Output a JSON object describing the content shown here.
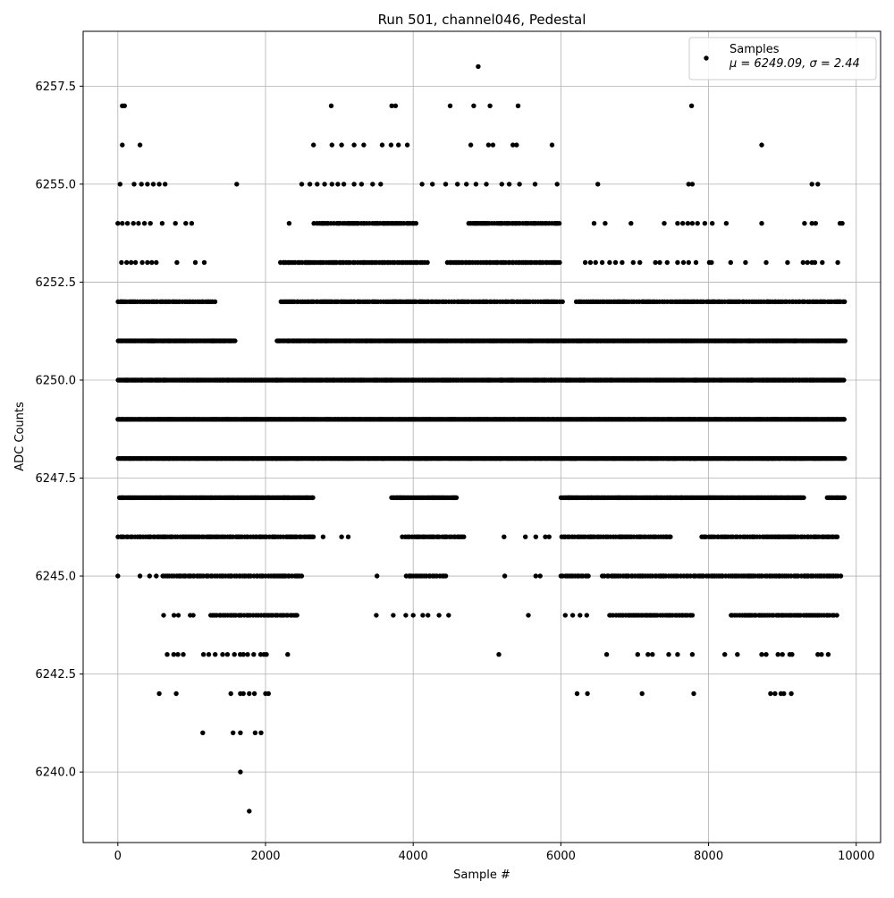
{
  "chart_data": {
    "type": "scatter",
    "title": "Run 501, channel046, Pedestal",
    "xlabel": "Sample #",
    "ylabel": "ADC Counts",
    "xlim": [
      -470,
      10330
    ],
    "ylim": [
      6238.2,
      6258.9
    ],
    "xticks": [
      0,
      2000,
      4000,
      6000,
      8000,
      10000
    ],
    "xtick_labels": [
      "0",
      "2000",
      "4000",
      "6000",
      "8000",
      "10000"
    ],
    "yticks": [
      6240.0,
      6242.5,
      6245.0,
      6247.5,
      6250.0,
      6252.5,
      6255.0,
      6257.5
    ],
    "ytick_labels": [
      "6240.0",
      "6242.5",
      "6245.0",
      "6247.5",
      "6250.0",
      "6252.5",
      "6255.0",
      "6257.5"
    ],
    "grid": true,
    "marker_color": "#000000",
    "legend": {
      "placement": "top-right",
      "series_label": "Samples",
      "stats_label": "μ = 6249.09, σ = 2.44"
    },
    "series": [
      {
        "name": "Samples",
        "bands": [
          {
            "y": 6248,
            "density": "dense",
            "ranges": [
              [
                0,
                9850
              ]
            ]
          },
          {
            "y": 6249,
            "density": "dense",
            "ranges": [
              [
                0,
                9850
              ]
            ]
          },
          {
            "y": 6250,
            "density": "dense",
            "ranges": [
              [
                0,
                9850
              ]
            ]
          },
          {
            "y": 6251,
            "density": "dense",
            "ranges": [
              [
                0,
                1600
              ],
              [
                2150,
                9850
              ]
            ]
          },
          {
            "y": 6247,
            "density": "dense",
            "ranges": [
              [
                20,
                2650
              ],
              [
                3700,
                4600
              ],
              [
                6000,
                9300
              ],
              [
                9600,
                9850
              ]
            ]
          },
          {
            "y": 6252,
            "density": "medium",
            "ranges": [
              [
                0,
                1350
              ],
              [
                2200,
                6050
              ],
              [
                6200,
                9850
              ]
            ]
          },
          {
            "y": 6253,
            "density": "medium",
            "ranges": [
              [
                2200,
                4200
              ],
              [
                4450,
                6000
              ]
            ]
          },
          {
            "y": 6254,
            "density": "medium",
            "ranges": [
              [
                2650,
                4050
              ],
              [
                4750,
                6000
              ]
            ]
          },
          {
            "y": 6246,
            "density": "medium",
            "ranges": [
              [
                0,
                2650
              ],
              [
                3850,
                4700
              ],
              [
                6000,
                7500
              ],
              [
                7900,
                9750
              ]
            ]
          },
          {
            "y": 6245,
            "density": "medium",
            "ranges": [
              [
                600,
                2500
              ],
              [
                3900,
                4450
              ],
              [
                6000,
                6400
              ],
              [
                6550,
                9800
              ]
            ]
          },
          {
            "y": 6244,
            "density": "medium",
            "ranges": [
              [
                1250,
                2450
              ],
              [
                6650,
                7800
              ],
              [
                8300,
                9750
              ]
            ]
          },
          {
            "y": 6243,
            "density": "sparse",
            "ranges": [
              [
                650,
                950
              ],
              [
                1150,
                2050
              ]
            ]
          }
        ],
        "points": [
          [
            0,
            6254
          ],
          [
            30,
            6255
          ],
          [
            60,
            6256
          ],
          [
            60,
            6257
          ],
          [
            90,
            6257
          ],
          [
            300,
            6256
          ],
          [
            220,
            6255
          ],
          [
            320,
            6255
          ],
          [
            400,
            6255
          ],
          [
            480,
            6255
          ],
          [
            560,
            6255
          ],
          [
            640,
            6255
          ],
          [
            50,
            6253
          ],
          [
            120,
            6253
          ],
          [
            180,
            6253
          ],
          [
            240,
            6253
          ],
          [
            330,
            6253
          ],
          [
            400,
            6253
          ],
          [
            460,
            6253
          ],
          [
            520,
            6253
          ],
          [
            800,
            6253
          ],
          [
            1050,
            6253
          ],
          [
            1170,
            6253
          ],
          [
            60,
            6254
          ],
          [
            130,
            6254
          ],
          [
            210,
            6254
          ],
          [
            280,
            6254
          ],
          [
            360,
            6254
          ],
          [
            440,
            6254
          ],
          [
            600,
            6254
          ],
          [
            780,
            6254
          ],
          [
            920,
            6254
          ],
          [
            1000,
            6254
          ],
          [
            1610,
            6255
          ],
          [
            0,
            6245
          ],
          [
            300,
            6245
          ],
          [
            430,
            6245
          ],
          [
            520,
            6245
          ],
          [
            560,
            6242
          ],
          [
            790,
            6242
          ],
          [
            1530,
            6242
          ],
          [
            1660,
            6242
          ],
          [
            1700,
            6242
          ],
          [
            1780,
            6242
          ],
          [
            1850,
            6242
          ],
          [
            2000,
            6242
          ],
          [
            2040,
            6242
          ],
          [
            1150,
            6241
          ],
          [
            1560,
            6241
          ],
          [
            1660,
            6241
          ],
          [
            1860,
            6241
          ],
          [
            1940,
            6241
          ],
          [
            1660,
            6240
          ],
          [
            1780,
            6239
          ],
          [
            620,
            6244
          ],
          [
            760,
            6244
          ],
          [
            820,
            6244
          ],
          [
            980,
            6244
          ],
          [
            1020,
            6244
          ],
          [
            2300,
            6243
          ],
          [
            2320,
            6254
          ],
          [
            2490,
            6255
          ],
          [
            2650,
            6256
          ],
          [
            2900,
            6256
          ],
          [
            3030,
            6256
          ],
          [
            3200,
            6256
          ],
          [
            3330,
            6256
          ],
          [
            3580,
            6256
          ],
          [
            3700,
            6256
          ],
          [
            3800,
            6256
          ],
          [
            3920,
            6256
          ],
          [
            2890,
            6257
          ],
          [
            3710,
            6257
          ],
          [
            3760,
            6257
          ],
          [
            4500,
            6257
          ],
          [
            4820,
            6257
          ],
          [
            5040,
            6257
          ],
          [
            5420,
            6257
          ],
          [
            4880,
            6258
          ],
          [
            2600,
            6255
          ],
          [
            2700,
            6255
          ],
          [
            2800,
            6255
          ],
          [
            2900,
            6255
          ],
          [
            2980,
            6255
          ],
          [
            3060,
            6255
          ],
          [
            3200,
            6255
          ],
          [
            3300,
            6255
          ],
          [
            3450,
            6255
          ],
          [
            3560,
            6255
          ],
          [
            4120,
            6255
          ],
          [
            4260,
            6255
          ],
          [
            4440,
            6255
          ],
          [
            4600,
            6255
          ],
          [
            4720,
            6255
          ],
          [
            4850,
            6255
          ],
          [
            4990,
            6255
          ],
          [
            5200,
            6255
          ],
          [
            5300,
            6255
          ],
          [
            5440,
            6255
          ],
          [
            5650,
            6255
          ],
          [
            5950,
            6255
          ],
          [
            4780,
            6256
          ],
          [
            5020,
            6256
          ],
          [
            5080,
            6256
          ],
          [
            5350,
            6256
          ],
          [
            5400,
            6256
          ],
          [
            5880,
            6256
          ],
          [
            2780,
            6246
          ],
          [
            3030,
            6246
          ],
          [
            3120,
            6246
          ],
          [
            3510,
            6245
          ],
          [
            3500,
            6244
          ],
          [
            3730,
            6244
          ],
          [
            3900,
            6244
          ],
          [
            4000,
            6244
          ],
          [
            4130,
            6244
          ],
          [
            4200,
            6244
          ],
          [
            4350,
            6244
          ],
          [
            4480,
            6244
          ],
          [
            5160,
            6243
          ],
          [
            5230,
            6246
          ],
          [
            5240,
            6245
          ],
          [
            5560,
            6244
          ],
          [
            5520,
            6246
          ],
          [
            5660,
            6246
          ],
          [
            5790,
            6246
          ],
          [
            5840,
            6246
          ],
          [
            5660,
            6245
          ],
          [
            5720,
            6245
          ],
          [
            6220,
            6242
          ],
          [
            6360,
            6242
          ],
          [
            6350,
            6244
          ],
          [
            6060,
            6244
          ],
          [
            6160,
            6244
          ],
          [
            6260,
            6244
          ],
          [
            6620,
            6243
          ],
          [
            7040,
            6243
          ],
          [
            7180,
            6243
          ],
          [
            7240,
            6243
          ],
          [
            7460,
            6243
          ],
          [
            7580,
            6243
          ],
          [
            7780,
            6243
          ],
          [
            8220,
            6243
          ],
          [
            8390,
            6243
          ],
          [
            8720,
            6243
          ],
          [
            8780,
            6243
          ],
          [
            8940,
            6243
          ],
          [
            9000,
            6243
          ],
          [
            9100,
            6243
          ],
          [
            9130,
            6243
          ],
          [
            9480,
            6243
          ],
          [
            9530,
            6243
          ],
          [
            9620,
            6243
          ],
          [
            7100,
            6242
          ],
          [
            7800,
            6242
          ],
          [
            8840,
            6242
          ],
          [
            8900,
            6242
          ],
          [
            8980,
            6242
          ],
          [
            9020,
            6242
          ],
          [
            9120,
            6242
          ],
          [
            6450,
            6254
          ],
          [
            6600,
            6254
          ],
          [
            6950,
            6254
          ],
          [
            7400,
            6254
          ],
          [
            7580,
            6254
          ],
          [
            7650,
            6254
          ],
          [
            7720,
            6254
          ],
          [
            7780,
            6254
          ],
          [
            7850,
            6254
          ],
          [
            7950,
            6254
          ],
          [
            8050,
            6254
          ],
          [
            8240,
            6254
          ],
          [
            8720,
            6254
          ],
          [
            9300,
            6254
          ],
          [
            9400,
            6254
          ],
          [
            9450,
            6254
          ],
          [
            9780,
            6254
          ],
          [
            9810,
            6254
          ],
          [
            6500,
            6255
          ],
          [
            7730,
            6255
          ],
          [
            7780,
            6255
          ],
          [
            9400,
            6255
          ],
          [
            9480,
            6255
          ],
          [
            8720,
            6256
          ],
          [
            7770,
            6257
          ],
          [
            6330,
            6253
          ],
          [
            6400,
            6253
          ],
          [
            6470,
            6253
          ],
          [
            6560,
            6253
          ],
          [
            6660,
            6253
          ],
          [
            6740,
            6253
          ],
          [
            6830,
            6253
          ],
          [
            6980,
            6253
          ],
          [
            7070,
            6253
          ],
          [
            7280,
            6253
          ],
          [
            7340,
            6253
          ],
          [
            7440,
            6253
          ],
          [
            7580,
            6253
          ],
          [
            7660,
            6253
          ],
          [
            7730,
            6253
          ],
          [
            7830,
            6253
          ],
          [
            8010,
            6253
          ],
          [
            8040,
            6253
          ],
          [
            8300,
            6253
          ],
          [
            8500,
            6253
          ],
          [
            8780,
            6253
          ],
          [
            9070,
            6253
          ],
          [
            9280,
            6253
          ],
          [
            9340,
            6253
          ],
          [
            9400,
            6253
          ],
          [
            9440,
            6253
          ],
          [
            9540,
            6253
          ],
          [
            9750,
            6253
          ],
          [
            8550,
            6245
          ],
          [
            9300,
            6245
          ],
          [
            9350,
            6245
          ],
          [
            9520,
            6245
          ],
          [
            9560,
            6245
          ],
          [
            9630,
            6245
          ],
          [
            9690,
            6245
          ],
          [
            8940,
            6246
          ],
          [
            9020,
            6246
          ],
          [
            9100,
            6246
          ],
          [
            9160,
            6246
          ],
          [
            9450,
            6246
          ],
          [
            9550,
            6246
          ],
          [
            9620,
            6246
          ],
          [
            9680,
            6246
          ]
        ]
      }
    ]
  }
}
